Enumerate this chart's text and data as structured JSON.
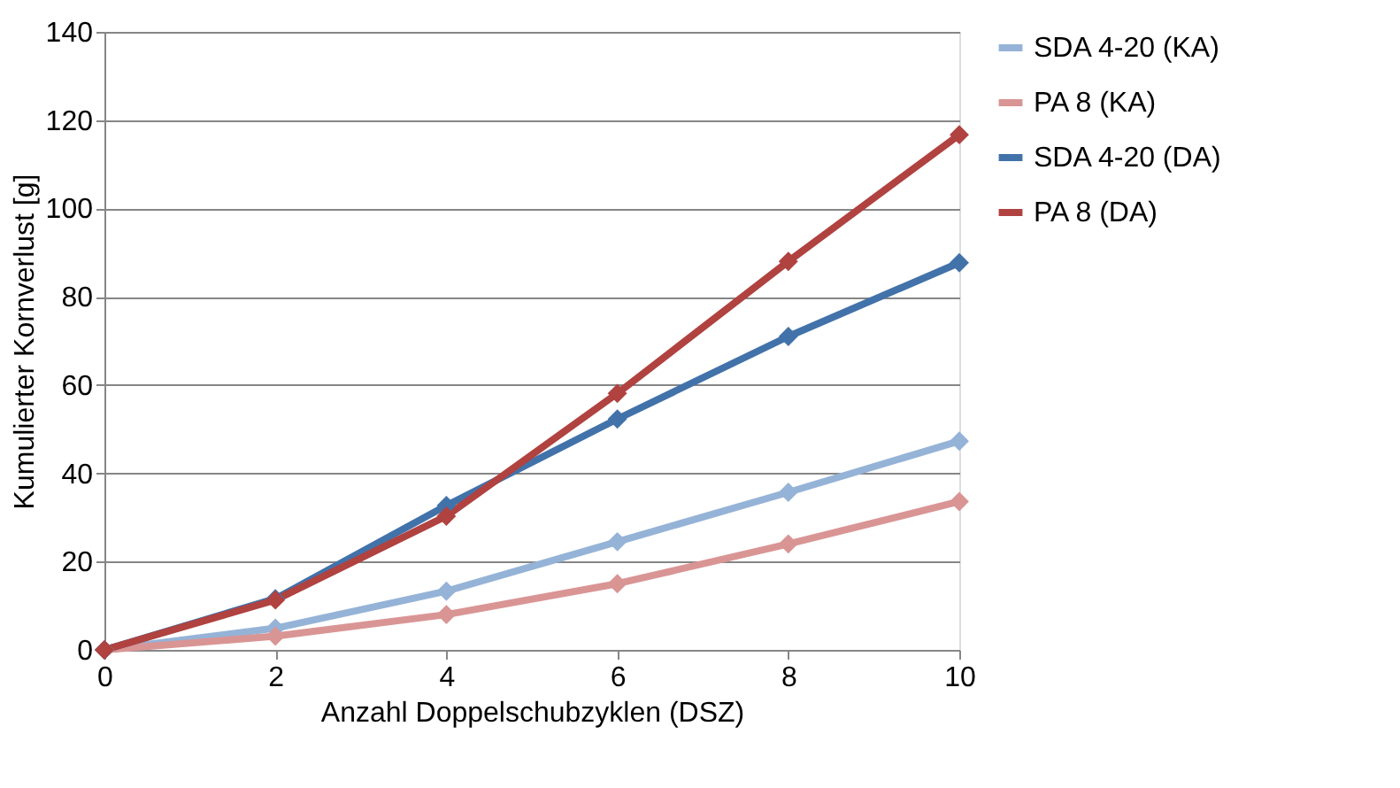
{
  "chart_data": {
    "type": "line",
    "xlabel": "Anzahl Doppelschubzyklen (DSZ)",
    "ylabel": "Kumulierter Kornverlust [g]",
    "x": [
      0,
      2,
      4,
      6,
      8,
      10
    ],
    "series": [
      {
        "name": "SDA 4-20 (KA)",
        "color": "#95b3d7",
        "values": [
          0,
          4.9,
          13.3,
          24.5,
          35.7,
          47.3
        ]
      },
      {
        "name": "PA 8 (KA)",
        "color": "#d99594",
        "values": [
          0,
          3.1,
          8,
          15,
          24,
          33.6
        ]
      },
      {
        "name": "SDA 4-20 (DA)",
        "color": "#4272aa",
        "values": [
          0,
          11.6,
          32.7,
          52.3,
          71,
          87.7
        ]
      },
      {
        "name": "PA 8 (DA)",
        "color": "#b04240",
        "values": [
          0,
          11.3,
          30.3,
          58.1,
          88,
          116.7
        ]
      }
    ],
    "xlim": [
      0,
      10
    ],
    "xticks": [
      0,
      2,
      4,
      6,
      8,
      10
    ],
    "ylim": [
      0,
      140
    ],
    "yticks": [
      0,
      20,
      40,
      60,
      80,
      100,
      120,
      140
    ],
    "grid": "y",
    "legend": "right",
    "marker": "diamond",
    "line_style": "solid"
  }
}
